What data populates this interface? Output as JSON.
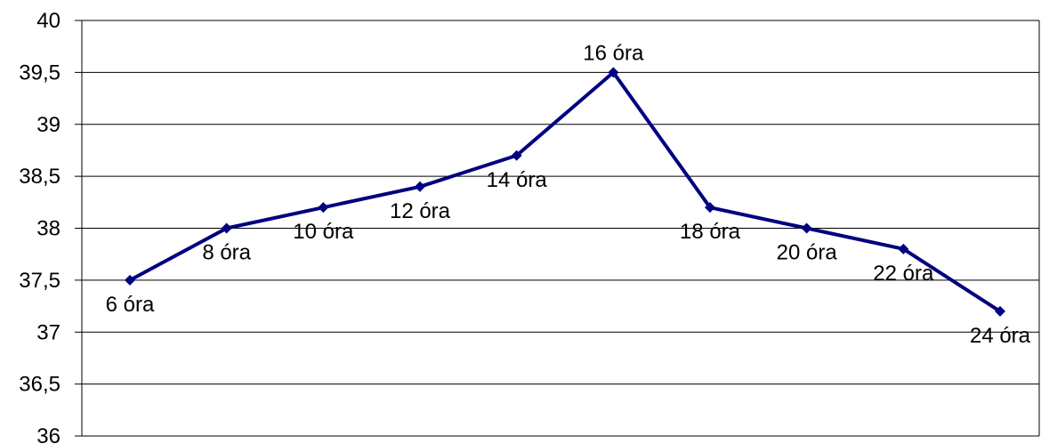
{
  "chart_data": {
    "type": "line",
    "title": "",
    "xlabel": "",
    "ylabel": "",
    "ylim": [
      36,
      40
    ],
    "ytick_step": 0.5,
    "ytick_labels": [
      "36",
      "36,5",
      "37",
      "37,5",
      "38",
      "38,5",
      "39",
      "39,5",
      "40"
    ],
    "grid": true,
    "legend": "none",
    "series": [
      {
        "color": "#000080",
        "points": [
          {
            "label": "6 óra",
            "y": 37.5,
            "label_pos": "below"
          },
          {
            "label": "8 óra",
            "y": 38.0,
            "label_pos": "below"
          },
          {
            "label": "10 óra",
            "y": 38.2,
            "label_pos": "below"
          },
          {
            "label": "12 óra",
            "y": 38.4,
            "label_pos": "below"
          },
          {
            "label": "14 óra",
            "y": 38.7,
            "label_pos": "below"
          },
          {
            "label": "16 óra",
            "y": 39.5,
            "label_pos": "above"
          },
          {
            "label": "18 óra",
            "y": 38.2,
            "label_pos": "below"
          },
          {
            "label": "20 óra",
            "y": 38.0,
            "label_pos": "below"
          },
          {
            "label": "22 óra",
            "y": 37.8,
            "label_pos": "below"
          },
          {
            "label": "24 óra",
            "y": 37.2,
            "label_pos": "below"
          }
        ]
      }
    ]
  }
}
